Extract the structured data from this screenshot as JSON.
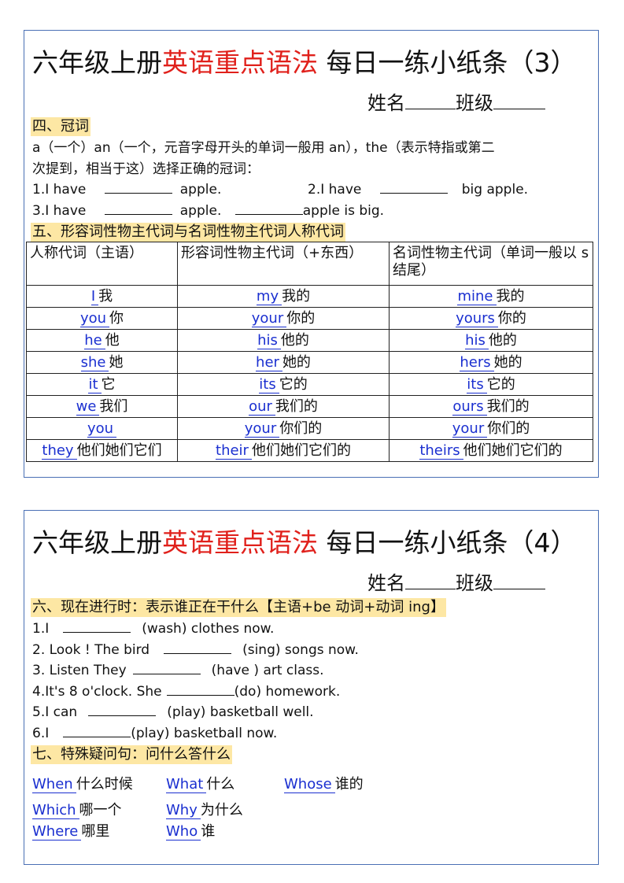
{
  "sheet3": {
    "title_black1": "六年级上册",
    "title_red": "英语重点语法",
    "title_black2": " 每日一练小纸条（3）",
    "name_label": "姓名",
    "class_label": "班级",
    "sec4": "四、冠词",
    "desc1": "a（一个）an（一个，元音字母开头的单词一般用 an），the（表示特指或第二",
    "desc2": "次提到，相当于这）选择正确的冠词：",
    "q1a": "1.I have",
    "q1b": "apple.",
    "q2a": "2.I have",
    "q2b": "big apple.",
    "q3a": "3.I have",
    "q3b": "apple.",
    "q3c": "apple is big.",
    "sec5": "五、形容词性物主代词与名词性物主代词人称代词",
    "headers": [
      "人称代词（主语）",
      "形容词性物主代词（+东西）",
      "名词性物主代词（单词一般以 s 结尾）"
    ],
    "rows": [
      [
        [
          "I",
          "我"
        ],
        [
          "my",
          "我的"
        ],
        [
          "mine",
          "我的"
        ]
      ],
      [
        [
          "you",
          "你"
        ],
        [
          "your",
          "你的"
        ],
        [
          "yours",
          "你的"
        ]
      ],
      [
        [
          "he",
          "他"
        ],
        [
          "his",
          "他的"
        ],
        [
          "his",
          "他的"
        ]
      ],
      [
        [
          "she",
          "她"
        ],
        [
          "her",
          "她的"
        ],
        [
          "hers",
          "她的"
        ]
      ],
      [
        [
          "it",
          "它"
        ],
        [
          "its",
          "它的"
        ],
        [
          "its",
          "它的"
        ]
      ],
      [
        [
          "we",
          "我们"
        ],
        [
          "our",
          "我们的"
        ],
        [
          "ours",
          "我们的"
        ]
      ],
      [
        [
          "you",
          ""
        ],
        [
          "your",
          "你们的"
        ],
        [
          "your",
          "你们的"
        ]
      ],
      [
        [
          "they",
          "他们她们它们"
        ],
        [
          "their",
          "他们她们它们的"
        ],
        [
          "theirs",
          "他们她们它们的"
        ]
      ]
    ]
  },
  "sheet4": {
    "title_black1": "六年级上册",
    "title_red": "英语重点语法",
    "title_black2": " 每日一练小纸条（4）",
    "name_label": "姓名",
    "class_label": "班级",
    "sec6": "六、现在进行时：表示谁正在干什么【主语+be 动词+动词 ing】",
    "q": [
      [
        "1.I",
        "(wash) clothes now."
      ],
      [
        "2. Look ! The bird",
        "(sing) songs now."
      ],
      [
        "3. Listen They",
        "(have ) art class."
      ],
      [
        "4.It's 8 o'clock. She",
        "(do) homework."
      ],
      [
        "5.I can",
        "(play) basketball well."
      ],
      [
        "6.I",
        "(play) basketball now."
      ]
    ],
    "sec7": "七、特殊疑问句：问什么答什么",
    "wh": [
      [
        "When",
        "什么时候"
      ],
      [
        "What",
        "什么"
      ],
      [
        "Whose",
        "谁的"
      ],
      [
        "Which",
        "哪一个"
      ],
      [
        "Why",
        "为什么"
      ],
      [
        "Where",
        "哪里"
      ],
      [
        "Who",
        "谁"
      ]
    ]
  },
  "colors": {
    "border": "#4a6fb5",
    "red": "#e0201b",
    "highlight": "#fde7a4",
    "answer_blue": "#1a2fd0"
  }
}
